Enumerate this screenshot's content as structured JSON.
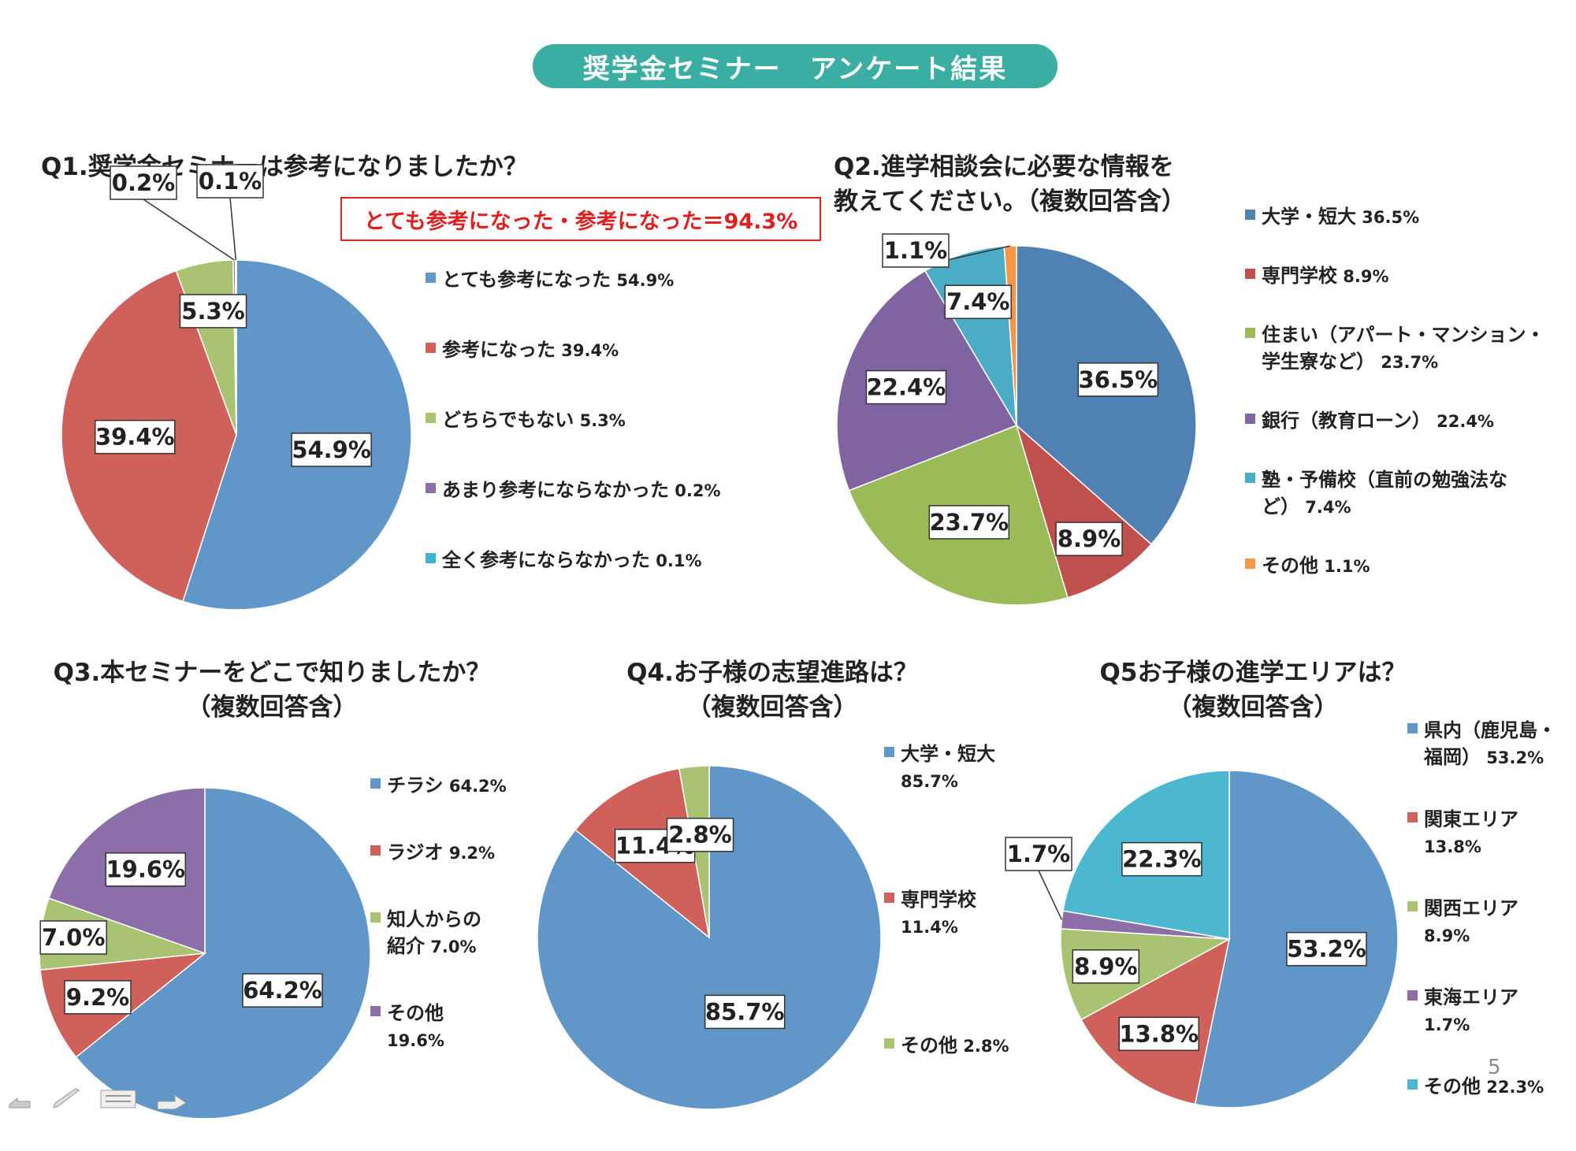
{
  "banner": "奨学金セミナー　アンケート結果",
  "highlight_q1": "とても参考になった・参考になった＝94.3%",
  "page_number": "5",
  "chart_data": [
    {
      "id": "q1",
      "type": "pie",
      "title": "Q1.奨学金セミナーは参考になりましたか？",
      "series": [
        {
          "name": "とても参考になった",
          "value": 54.9,
          "label": "54.9%",
          "legend": "とても参考になった",
          "legend_val": "54.9%",
          "color": "#6096c8"
        },
        {
          "name": "参考になった",
          "value": 39.4,
          "label": "39.4%",
          "legend": "参考になった",
          "legend_val": "39.4%",
          "color": "#d0605a"
        },
        {
          "name": "どちらでもない",
          "value": 5.3,
          "label": "5.3%",
          "legend": "どちらでもない",
          "legend_val": "5.3%",
          "color": "#a9c373"
        },
        {
          "name": "あまり参考にならなかった",
          "value": 0.2,
          "label": "0.2%",
          "legend": "あまり参考にならなかった",
          "legend_val": "0.2%",
          "color": "#8c6fa8"
        },
        {
          "name": "全く参考にならなかった",
          "value": 0.1,
          "label": "0.1%",
          "legend": "全く参考にならなかった",
          "legend_val": "0.1%",
          "color": "#3fb5cc"
        }
      ]
    },
    {
      "id": "q2",
      "type": "pie",
      "title_lines": [
        "Q2.進学相談会に必要な情報を",
        "教えてください。（複数回答含）"
      ],
      "series": [
        {
          "name": "大学・短大",
          "value": 36.5,
          "label": "36.5%",
          "legend": "大学・短大",
          "legend_val": "36.5%",
          "color": "#4f81b3"
        },
        {
          "name": "専門学校",
          "value": 8.9,
          "label": "8.9%",
          "legend": "専門学校",
          "legend_val": "8.9%",
          "color": "#c0504d"
        },
        {
          "name": "住まい（アパート・マンション・学生寮など）",
          "value": 23.7,
          "label": "23.7%",
          "legend": "住まい（アパート・マンション・",
          "legend2": "学生寮など）",
          "legend_val": "23.7%",
          "color": "#9bbb59"
        },
        {
          "name": "銀行（教育ローン）",
          "value": 22.4,
          "label": "22.4%",
          "legend": "銀行（教育ローン）",
          "legend_val": "22.4%",
          "color": "#8064a2"
        },
        {
          "name": "塾・予備校（直前の勉強法など）",
          "value": 7.4,
          "label": "7.4%",
          "legend": "塾・予備校（直前の勉強法な",
          "legend2": "ど）",
          "legend_val": "7.4%",
          "color": "#4bacc6"
        },
        {
          "name": "その他",
          "value": 1.1,
          "label": "1.1%",
          "legend": "その他",
          "legend_val": "1.1%",
          "color": "#f79646"
        }
      ]
    },
    {
      "id": "q3",
      "type": "pie",
      "title_lines": [
        "Q3.本セミナーをどこで知りましたか？",
        "（複数回答含）"
      ],
      "series": [
        {
          "name": "チラシ",
          "value": 64.2,
          "label": "64.2%",
          "legend": "チラシ",
          "legend_val": "64.2%",
          "color": "#6096c8"
        },
        {
          "name": "ラジオ",
          "value": 9.2,
          "label": "9.2%",
          "legend": "ラジオ",
          "legend_val": "9.2%",
          "color": "#d0605a"
        },
        {
          "name": "知人からの紹介",
          "value": 7.0,
          "label": "7.0%",
          "legend": "知人からの",
          "legend2": "紹介",
          "legend_val": "7.0%",
          "color": "#a9c373"
        },
        {
          "name": "その他",
          "value": 19.6,
          "label": "19.6%",
          "legend": "その他",
          "legend2": "",
          "legend_val": "19.6%",
          "color": "#8c6fa8"
        }
      ]
    },
    {
      "id": "q4",
      "type": "pie",
      "title_lines": [
        "Q4.お子様の志望進路は？",
        "（複数回答含）"
      ],
      "series": [
        {
          "name": "大学・短大",
          "value": 85.7,
          "label": "85.7%",
          "legend": "大学・短大",
          "legend2": "",
          "legend_val": "85.7%",
          "color": "#6096c8"
        },
        {
          "name": "専門学校",
          "value": 11.4,
          "label": "11.4%",
          "legend": "専門学校",
          "legend2": "",
          "legend_val": "11.4%",
          "color": "#d0605a"
        },
        {
          "name": "その他",
          "value": 2.8,
          "label": "2.8%",
          "legend": "その他",
          "legend_val": "2.8%",
          "color": "#a9c373"
        }
      ]
    },
    {
      "id": "q5",
      "type": "pie",
      "title_lines": [
        "Q5お子様の進学エリアは？",
        "（複数回答含）"
      ],
      "series": [
        {
          "name": "県内（鹿児島・福岡）",
          "value": 53.2,
          "label": "53.2%",
          "legend": "県内（鹿児島・",
          "legend2": "福岡）",
          "legend_val": "53.2%",
          "color": "#6096c8"
        },
        {
          "name": "関東エリア",
          "value": 13.8,
          "label": "13.8%",
          "legend": "関東エリア",
          "legend2": "",
          "legend_val": "13.8%",
          "color": "#d0605a"
        },
        {
          "name": "関西エリア",
          "value": 8.9,
          "label": "8.9%",
          "legend": "関西エリア",
          "legend2": "",
          "legend_val": "8.9%",
          "color": "#a9c373"
        },
        {
          "name": "東海エリア",
          "value": 1.7,
          "label": "1.7%",
          "legend": "東海エリア",
          "legend2": "",
          "legend_val": "1.7%",
          "color": "#8c6fa8"
        },
        {
          "name": "その他",
          "value": 22.3,
          "label": "22.3%",
          "legend": "その他",
          "legend_val": "22.3%",
          "color": "#4bb8cf"
        }
      ]
    }
  ]
}
